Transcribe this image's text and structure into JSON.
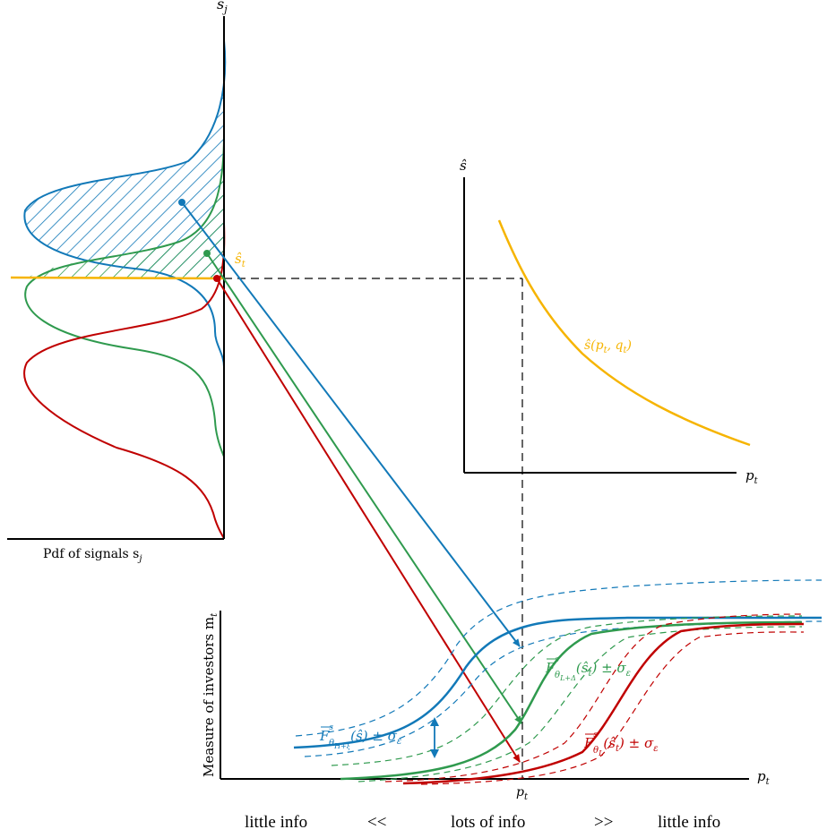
{
  "colors": {
    "blue": "#1279b8",
    "green": "#2f9a4e",
    "red": "#c00000",
    "orange": "#f6b400",
    "axis": "#000000"
  },
  "left_panel": {
    "y_axis_label": "s",
    "y_axis_sub": "j",
    "x_caption": "Pdf of signals s",
    "x_caption_sub": "j",
    "threshold_label": "ŝ",
    "threshold_sub": "t"
  },
  "top_right_panel": {
    "y_axis_label": "ŝ",
    "x_axis_label": "p",
    "x_axis_sub": "t",
    "curve_label": "ŝ(p",
    "curve_label_sub": "t",
    "curve_label_mid": ", q",
    "curve_label_sub2": "t",
    "curve_label_end": ")"
  },
  "bottom_panel": {
    "y_axis_label": "Measure of investors m",
    "y_axis_sub": "t",
    "x_axis_label": "p",
    "x_axis_sub": "t",
    "price_tick_label": "p",
    "price_tick_sub": "t",
    "blue_curve_label": "F",
    "blue_curve_label_sup": "s",
    "blue_curve_label_sub": "θ",
    "blue_curve_label_subsub": "H+ξ",
    "blue_curve_label_tail": "(ŝ) ± σ",
    "blue_curve_label_eps": "ε",
    "green_curve_label": "F",
    "green_curve_label_sup": "s",
    "green_curve_label_sub": "θ",
    "green_curve_label_subsub": "L+Δ",
    "green_curve_label_tail": "(ŝ",
    "green_curve_label_tsub": "t",
    "green_curve_label_end": ") ± σ",
    "green_curve_label_eps": "ε",
    "red_curve_label": "F",
    "red_curve_label_sup": "s",
    "red_curve_label_sub": "θ",
    "red_curve_label_subsub": "L",
    "red_curve_label_tail": "(ŝ",
    "red_curve_label_tsub": "t",
    "red_curve_label_end": ") ± σ",
    "red_curve_label_eps": "ε"
  },
  "bottom_text": {
    "left": "little info",
    "left_arrow": "<<",
    "center": "lots of info",
    "right_arrow": ">>",
    "right": "little info"
  }
}
